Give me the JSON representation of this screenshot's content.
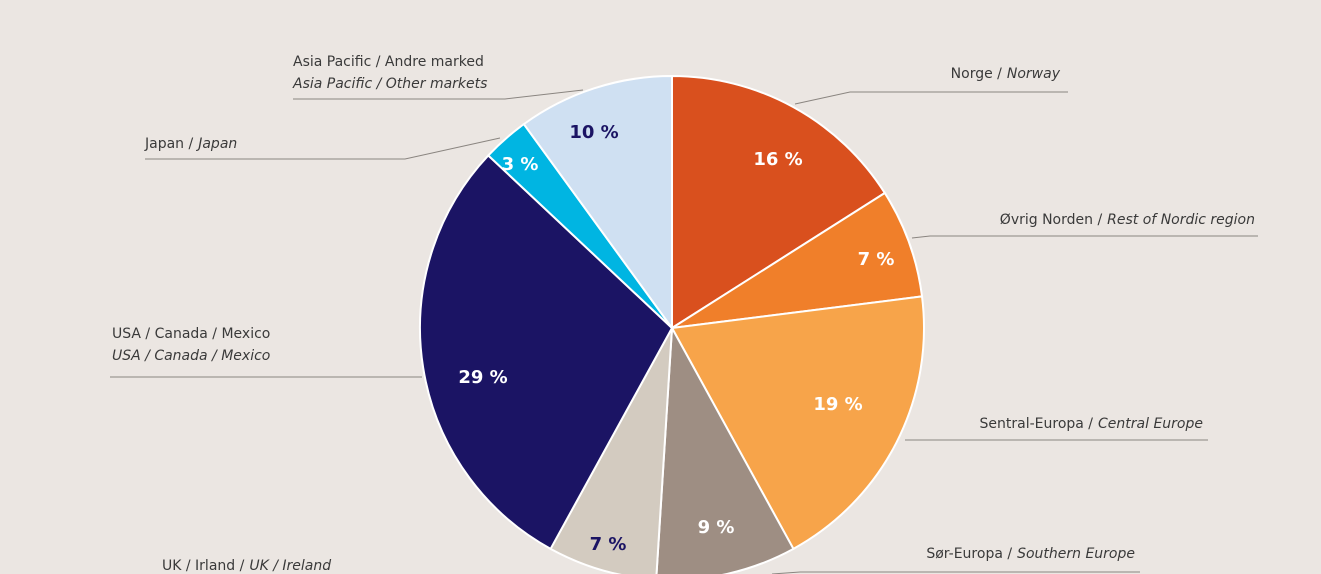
{
  "chart_data": {
    "type": "pie",
    "categories": [
      "Norge /",
      "Øvrig Norden /",
      "Sentral-Europa /",
      "Sør-Europa /",
      "UK / Irland /",
      "USA / Canada / Mexico",
      "Japan /",
      "Asia Pacific / Andre marked"
    ],
    "categories_en": [
      "Norway",
      "Rest of Nordic region",
      "Central Europe",
      "Southern Europe",
      "UK / Ireland",
      "USA / Canada / Mexico",
      "Japan",
      "Asia Pacific / Other markets"
    ],
    "values": [
      16,
      7,
      19,
      9,
      7,
      29,
      3,
      10
    ],
    "value_labels": [
      "16 %",
      "7 %",
      "19 %",
      "9 %",
      "7 %",
      "29 %",
      "3 %",
      "10 %"
    ],
    "colors": [
      "#d9501e",
      "#f07f2a",
      "#f7a44a",
      "#9e8e83",
      "#d3cbc0",
      "#1b1464",
      "#00b5e2",
      "#cfe0f2"
    ]
  }
}
